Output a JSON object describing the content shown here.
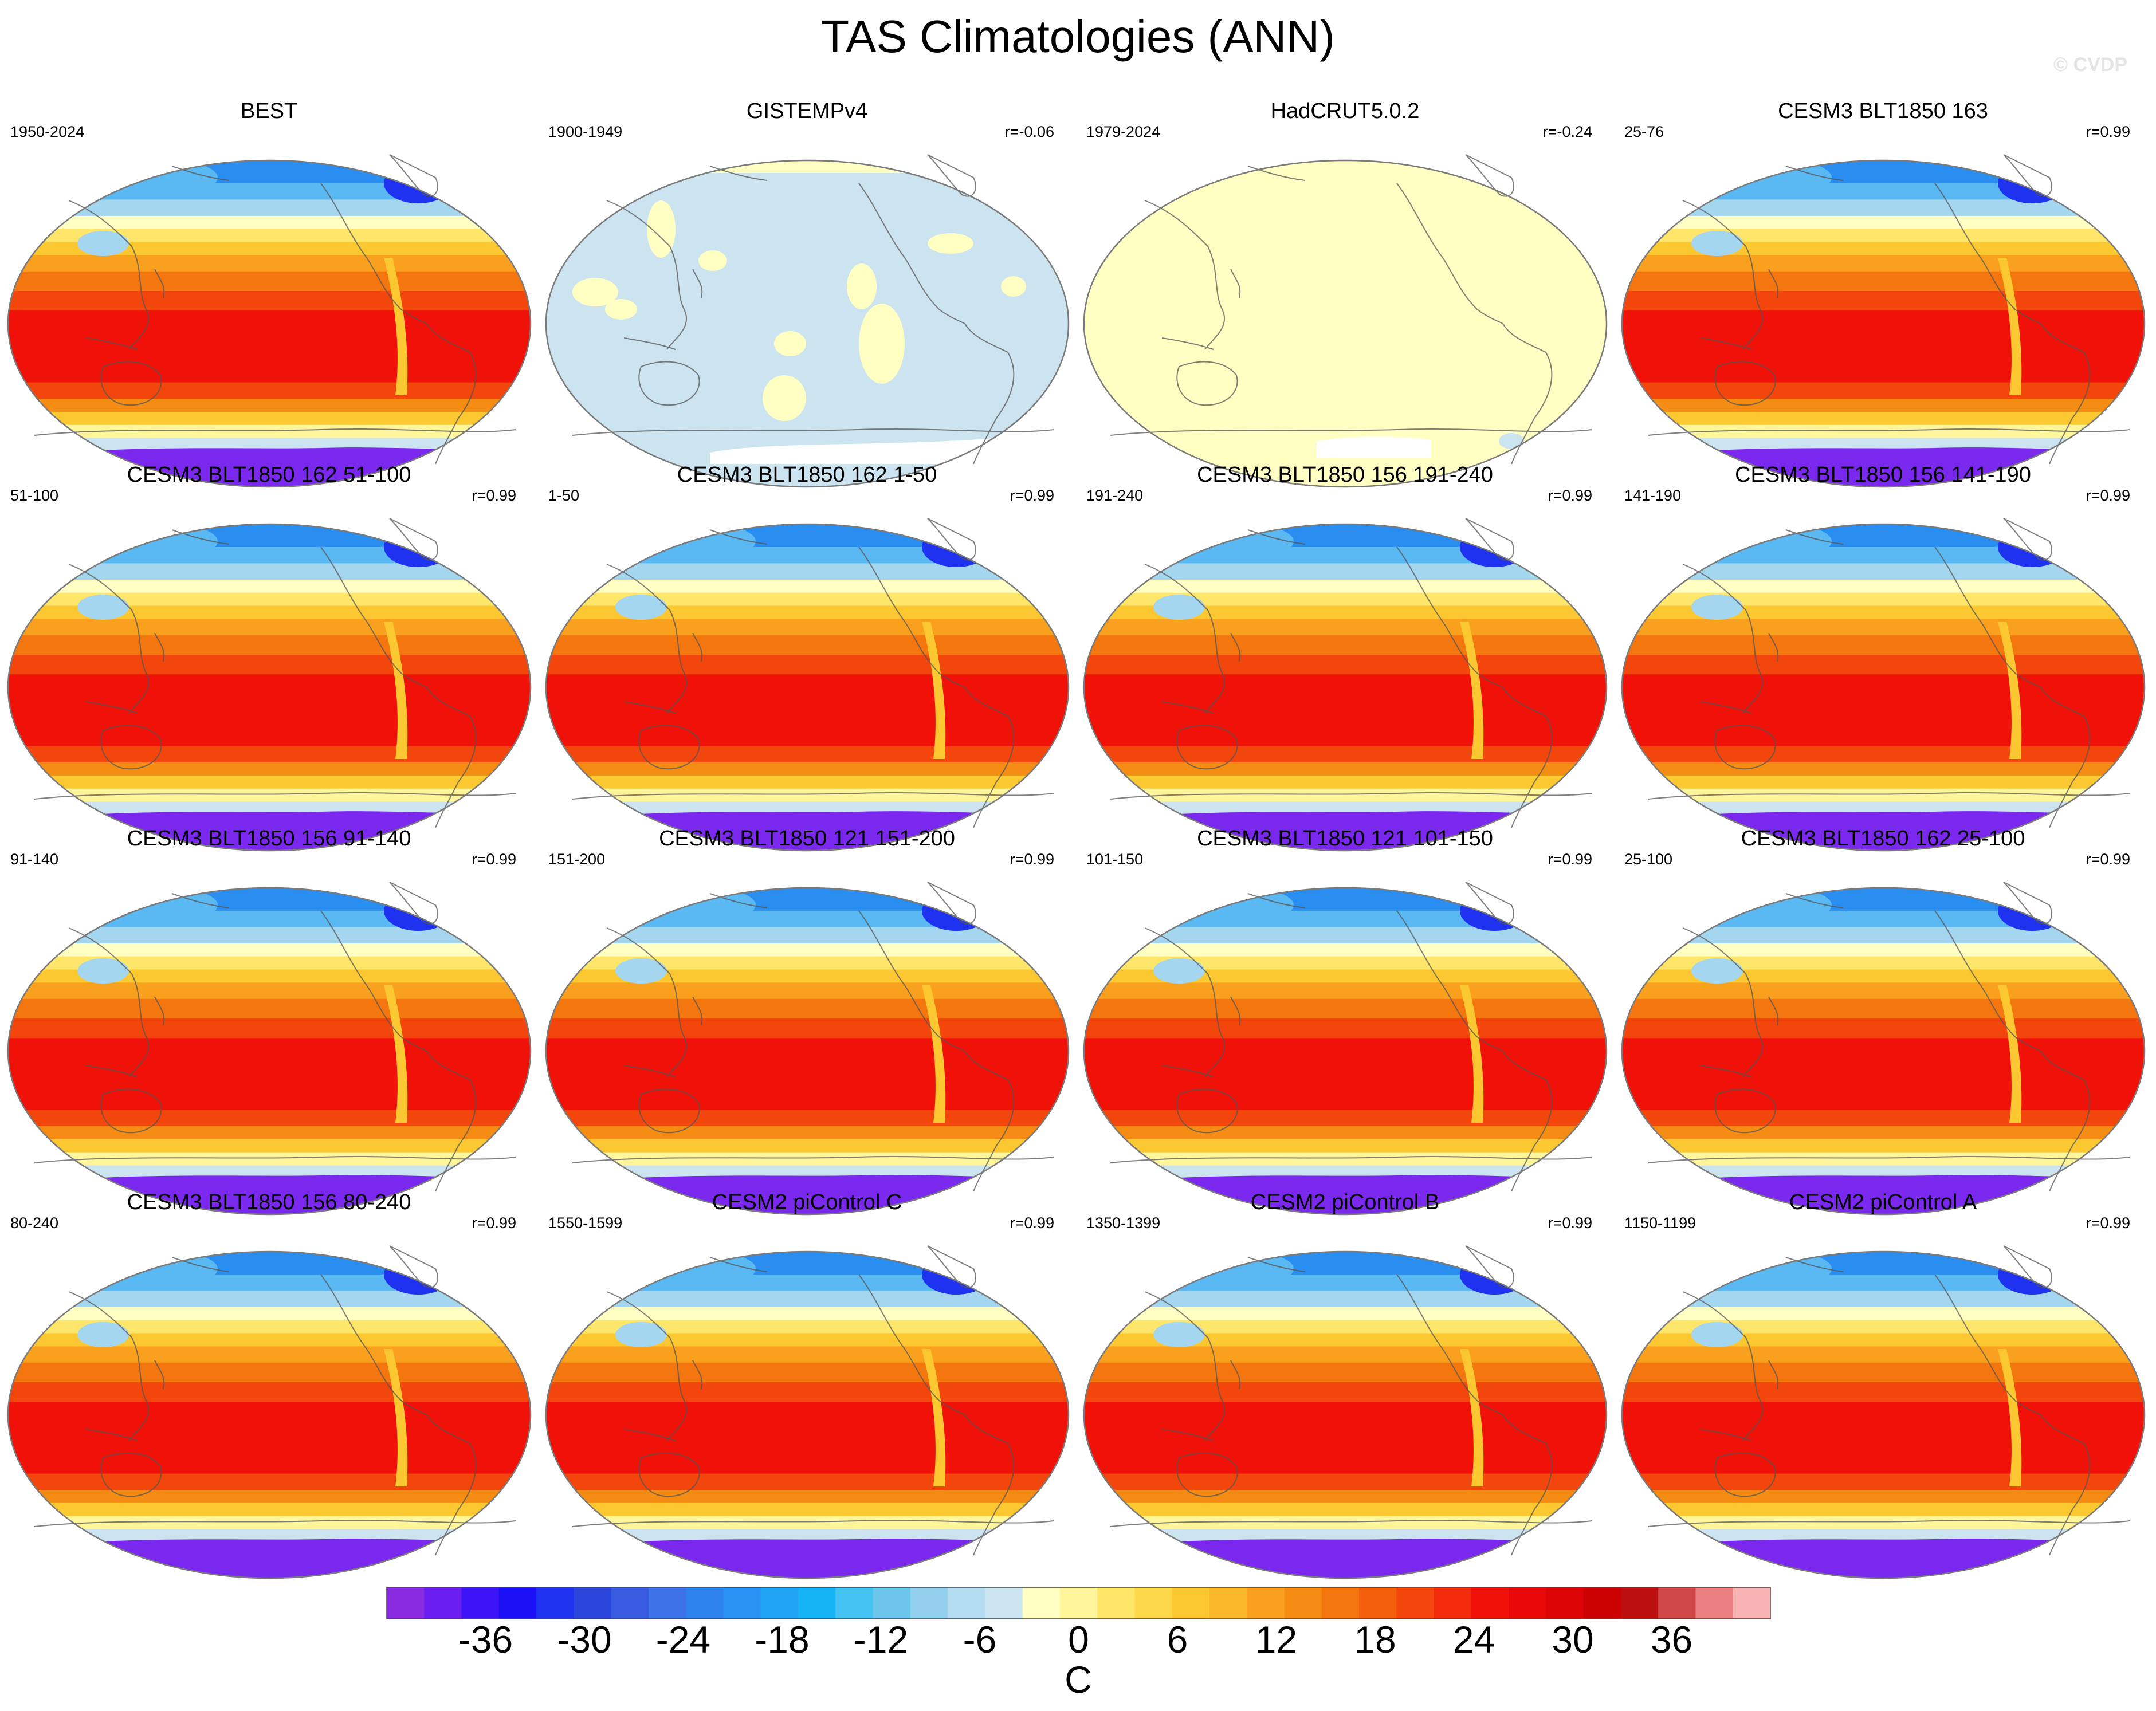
{
  "title": "TAS Climatologies (ANN)",
  "copyright": "© CVDP",
  "panels": [
    {
      "title": "BEST",
      "years": "1950-2024",
      "corr": "",
      "style": "full"
    },
    {
      "title": "GISTEMPv4",
      "years": "1900-1949",
      "corr": "r=-0.06",
      "style": "gistemp"
    },
    {
      "title": "HadCRUT5.0.2",
      "years": "1979-2024",
      "corr": "r=-0.24",
      "style": "hadcrut"
    },
    {
      "title": "CESM3 BLT1850 163",
      "years": "25-76",
      "corr": "r=0.99",
      "style": "full"
    },
    {
      "title": "CESM3 BLT1850 162 51-100",
      "years": "51-100",
      "corr": "r=0.99",
      "style": "full"
    },
    {
      "title": "CESM3 BLT1850 162 1-50",
      "years": "1-50",
      "corr": "r=0.99",
      "style": "full"
    },
    {
      "title": "CESM3 BLT1850 156 191-240",
      "years": "191-240",
      "corr": "r=0.99",
      "style": "full"
    },
    {
      "title": "CESM3 BLT1850 156 141-190",
      "years": "141-190",
      "corr": "r=0.99",
      "style": "full"
    },
    {
      "title": "CESM3 BLT1850 156 91-140",
      "years": "91-140",
      "corr": "r=0.99",
      "style": "full"
    },
    {
      "title": "CESM3 BLT1850 121 151-200",
      "years": "151-200",
      "corr": "r=0.99",
      "style": "full"
    },
    {
      "title": "CESM3 BLT1850 121 101-150",
      "years": "101-150",
      "corr": "r=0.99",
      "style": "full"
    },
    {
      "title": "CESM3 BLT1850 162 25-100",
      "years": "25-100",
      "corr": "r=0.99",
      "style": "full"
    },
    {
      "title": "CESM3 BLT1850 156 80-240",
      "years": "80-240",
      "corr": "r=0.99",
      "style": "full"
    },
    {
      "title": "CESM2 piControl C",
      "years": "1550-1599",
      "corr": "r=0.99",
      "style": "full"
    },
    {
      "title": "CESM2 piControl B",
      "years": "1350-1399",
      "corr": "r=0.99",
      "style": "full"
    },
    {
      "title": "CESM2 piControl A",
      "years": "1150-1199",
      "corr": "r=0.99",
      "style": "full"
    }
  ],
  "colorbar": {
    "unit": "C",
    "tick_labels": [
      "-36",
      "-30",
      "-24",
      "-18",
      "-12",
      "-6",
      "0",
      "6",
      "12",
      "18",
      "24",
      "30",
      "36"
    ],
    "tick_values": [
      -36,
      -30,
      -24,
      -18,
      -12,
      -6,
      0,
      6,
      12,
      18,
      24,
      30,
      36
    ],
    "min": -42,
    "max": 42,
    "step": 2,
    "colors": [
      "#8a2be2",
      "#6a1ff0",
      "#3c14f5",
      "#1a0ff5",
      "#1e32f0",
      "#2c46dc",
      "#3a5ce0",
      "#3d72e8",
      "#2e82ec",
      "#2a92f2",
      "#22a4f5",
      "#16b4f5",
      "#44c2f2",
      "#6cc6ec",
      "#92d0ee",
      "#b4dcf0",
      "#cce4f0",
      "#ffffc4",
      "#fff59a",
      "#fde66a",
      "#fcd84a",
      "#fcc832",
      "#fab82a",
      "#f9a11e",
      "#f58c14",
      "#f4760e",
      "#f25e0c",
      "#f2460c",
      "#f22c0c",
      "#f01208",
      "#e80808",
      "#dc0404",
      "#cc0202",
      "#bc1010",
      "#d04848",
      "#ec8080",
      "#f8b4b4"
    ]
  }
}
